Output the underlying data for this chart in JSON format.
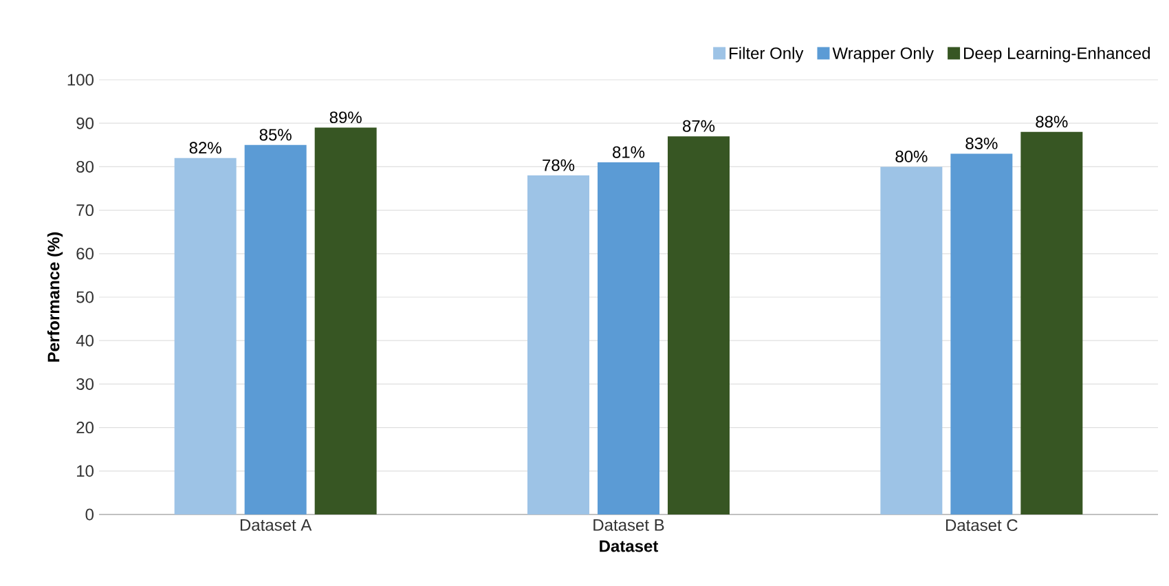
{
  "chart_data": {
    "type": "bar",
    "xlabel": "Dataset",
    "ylabel": "Performance (%)",
    "categories": [
      "Dataset A",
      "Dataset B",
      "Dataset C"
    ],
    "series": [
      {
        "name": "Filter Only",
        "color": "#9dc3e6",
        "values": [
          82,
          78,
          80
        ],
        "value_labels": [
          "82%",
          "78%",
          "80%"
        ]
      },
      {
        "name": "Wrapper Only",
        "color": "#5b9bd5",
        "values": [
          85,
          81,
          83
        ],
        "value_labels": [
          "85%",
          "81%",
          "83%"
        ]
      },
      {
        "name": "Deep Learning-Enhanced",
        "color": "#375623",
        "values": [
          89,
          87,
          88
        ],
        "value_labels": [
          "89%",
          "87%",
          "88%"
        ]
      }
    ],
    "ylim": [
      0,
      100
    ],
    "yticks": [
      0,
      10,
      20,
      30,
      40,
      50,
      60,
      70,
      80,
      90,
      100
    ],
    "grid": "y",
    "legend": "top right"
  }
}
